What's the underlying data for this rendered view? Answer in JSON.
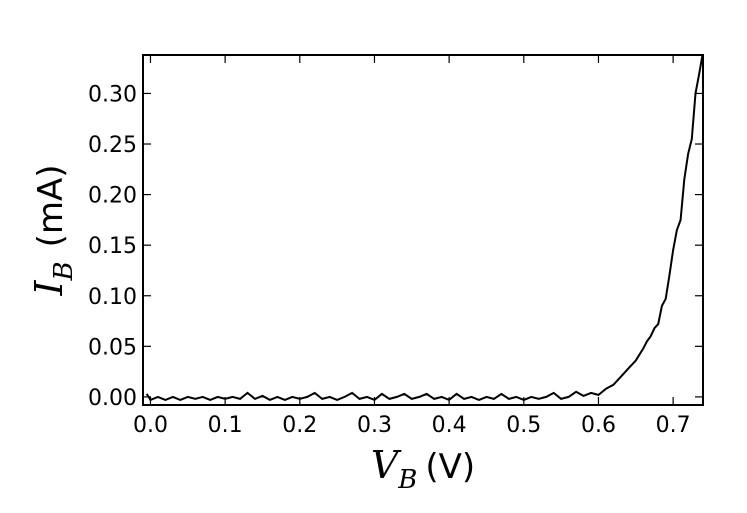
{
  "chart_data": {
    "type": "line",
    "title": "",
    "xlabel": {
      "var": "V",
      "sub": "B",
      "unit": "(V)"
    },
    "ylabel": {
      "var": "I",
      "sub": "B",
      "unit": "(mA)"
    },
    "xlim": [
      -0.01,
      0.74
    ],
    "ylim": [
      -0.008,
      0.338
    ],
    "xticks": [
      0.0,
      0.1,
      0.2,
      0.3,
      0.4,
      0.5,
      0.6,
      0.7
    ],
    "xtick_labels": [
      "0.0",
      "0.1",
      "0.2",
      "0.3",
      "0.4",
      "0.5",
      "0.6",
      "0.7"
    ],
    "yticks": [
      0.0,
      0.05,
      0.1,
      0.15,
      0.2,
      0.25,
      0.3
    ],
    "ytick_labels": [
      "0.00",
      "0.05",
      "0.10",
      "0.15",
      "0.20",
      "0.25",
      "0.30"
    ],
    "grid": false,
    "series": [
      {
        "line_color": "#000000",
        "x": [
          -0.005,
          0.0,
          0.01,
          0.02,
          0.03,
          0.04,
          0.05,
          0.06,
          0.07,
          0.08,
          0.09,
          0.1,
          0.11,
          0.12,
          0.13,
          0.14,
          0.15,
          0.16,
          0.17,
          0.18,
          0.19,
          0.2,
          0.21,
          0.22,
          0.23,
          0.24,
          0.25,
          0.26,
          0.27,
          0.28,
          0.29,
          0.3,
          0.31,
          0.32,
          0.33,
          0.34,
          0.35,
          0.36,
          0.37,
          0.38,
          0.39,
          0.4,
          0.41,
          0.42,
          0.43,
          0.44,
          0.45,
          0.46,
          0.47,
          0.48,
          0.49,
          0.5,
          0.51,
          0.52,
          0.53,
          0.54,
          0.55,
          0.56,
          0.57,
          0.58,
          0.59,
          0.6,
          0.61,
          0.62,
          0.63,
          0.64,
          0.65,
          0.66,
          0.665,
          0.67,
          0.675,
          0.68,
          0.685,
          0.69,
          0.695,
          0.7,
          0.705,
          0.71,
          0.715,
          0.72,
          0.725,
          0.73,
          0.735,
          0.739
        ],
        "y": [
          0.003,
          -0.003,
          0.0,
          -0.003,
          0.0,
          -0.003,
          0.0,
          -0.002,
          0.0,
          -0.003,
          0.0,
          -0.002,
          0.0,
          -0.002,
          0.004,
          -0.002,
          0.001,
          -0.003,
          0.0,
          -0.003,
          0.0,
          -0.002,
          0.0,
          0.004,
          -0.002,
          0.0,
          -0.003,
          0.0,
          0.004,
          -0.002,
          0.0,
          -0.003,
          0.003,
          -0.002,
          0.0,
          0.003,
          -0.002,
          0.0,
          0.003,
          -0.002,
          0.0,
          -0.003,
          0.003,
          -0.002,
          0.0,
          -0.003,
          0.0,
          -0.002,
          0.003,
          -0.002,
          0.0,
          -0.003,
          0.0,
          -0.002,
          0.0,
          0.004,
          -0.002,
          0.0,
          0.005,
          0.001,
          0.004,
          0.002,
          0.008,
          0.012,
          0.02,
          0.028,
          0.036,
          0.048,
          0.055,
          0.06,
          0.068,
          0.072,
          0.09,
          0.097,
          0.12,
          0.145,
          0.165,
          0.175,
          0.215,
          0.24,
          0.255,
          0.3,
          0.32,
          0.337
        ]
      }
    ]
  }
}
